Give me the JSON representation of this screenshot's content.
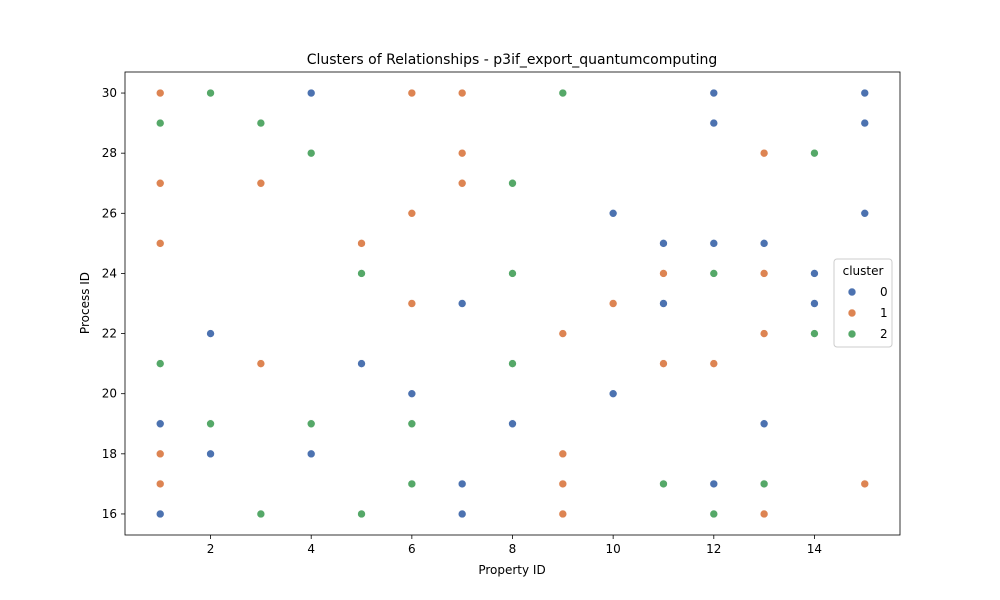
{
  "chart_data": {
    "type": "scatter",
    "title": "Clusters of Relationships - p3if_export_quantumcomputing",
    "xlabel": "Property ID",
    "ylabel": "Process ID",
    "xlim": [
      0.3,
      15.7
    ],
    "ylim": [
      15.3,
      30.7
    ],
    "xticks": [
      2,
      4,
      6,
      8,
      10,
      12,
      14
    ],
    "yticks": [
      16,
      18,
      20,
      22,
      24,
      26,
      28,
      30
    ],
    "grid": false,
    "legend": {
      "title": "cluster",
      "placement": "center-right"
    },
    "series": [
      {
        "name": "0",
        "color": "#4c72b0",
        "points": [
          [
            1,
            16
          ],
          [
            1,
            19
          ],
          [
            2,
            18
          ],
          [
            2,
            22
          ],
          [
            4,
            18
          ],
          [
            4,
            30
          ],
          [
            5,
            21
          ],
          [
            6,
            20
          ],
          [
            7,
            16
          ],
          [
            7,
            17
          ],
          [
            7,
            23
          ],
          [
            8,
            19
          ],
          [
            10,
            20
          ],
          [
            10,
            26
          ],
          [
            11,
            23
          ],
          [
            11,
            25
          ],
          [
            12,
            17
          ],
          [
            12,
            25
          ],
          [
            12,
            29
          ],
          [
            12,
            30
          ],
          [
            13,
            19
          ],
          [
            13,
            25
          ],
          [
            14,
            23
          ],
          [
            14,
            24
          ],
          [
            15,
            26
          ],
          [
            15,
            29
          ],
          [
            15,
            30
          ]
        ]
      },
      {
        "name": "1",
        "color": "#dd8452",
        "points": [
          [
            1,
            17
          ],
          [
            1,
            18
          ],
          [
            1,
            25
          ],
          [
            1,
            27
          ],
          [
            1,
            30
          ],
          [
            3,
            21
          ],
          [
            3,
            27
          ],
          [
            5,
            25
          ],
          [
            6,
            23
          ],
          [
            6,
            26
          ],
          [
            6,
            30
          ],
          [
            7,
            27
          ],
          [
            7,
            28
          ],
          [
            7,
            30
          ],
          [
            9,
            16
          ],
          [
            9,
            17
          ],
          [
            9,
            18
          ],
          [
            9,
            22
          ],
          [
            10,
            23
          ],
          [
            11,
            21
          ],
          [
            11,
            24
          ],
          [
            12,
            21
          ],
          [
            13,
            16
          ],
          [
            13,
            22
          ],
          [
            13,
            24
          ],
          [
            13,
            28
          ],
          [
            15,
            17
          ]
        ]
      },
      {
        "name": "2",
        "color": "#55a868",
        "points": [
          [
            1,
            21
          ],
          [
            1,
            29
          ],
          [
            2,
            19
          ],
          [
            2,
            30
          ],
          [
            3,
            16
          ],
          [
            3,
            29
          ],
          [
            4,
            19
          ],
          [
            4,
            28
          ],
          [
            5,
            16
          ],
          [
            5,
            24
          ],
          [
            6,
            17
          ],
          [
            6,
            19
          ],
          [
            8,
            21
          ],
          [
            8,
            24
          ],
          [
            8,
            27
          ],
          [
            9,
            30
          ],
          [
            11,
            17
          ],
          [
            12,
            16
          ],
          [
            12,
            24
          ],
          [
            13,
            17
          ],
          [
            14,
            22
          ],
          [
            14,
            28
          ]
        ]
      }
    ]
  }
}
